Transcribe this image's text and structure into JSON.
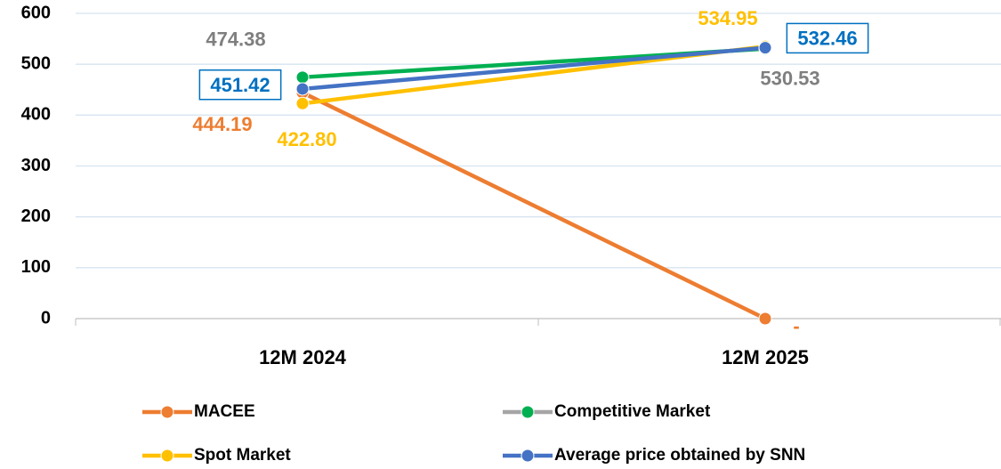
{
  "chart_data": {
    "type": "line",
    "categories": [
      "12M 2024",
      "12M 2025"
    ],
    "series": [
      {
        "name": "MACEE",
        "color": "#ED7D31",
        "label_color": "#ED7D31",
        "values": [
          444.19,
          0
        ],
        "value_labels": [
          "444.19",
          "-"
        ]
      },
      {
        "name": "Competitive Market",
        "color": "#00B050",
        "label_color": "#7F7F7F",
        "values": [
          474.38,
          530.53
        ]
      },
      {
        "name": "Spot Market",
        "color": "#FFC000",
        "label_color": "#FFC000",
        "values": [
          422.8,
          534.95
        ],
        "value_labels": [
          "422.80",
          "534.95"
        ]
      },
      {
        "name": "Average price obtained by SNN",
        "color": "#4472C4",
        "label_color": "#0070C0",
        "values": [
          451.42,
          532.46
        ],
        "boxed_labels": true
      }
    ],
    "ylim": [
      0,
      600
    ],
    "yticks": [
      0,
      100,
      200,
      300,
      400,
      500,
      600
    ],
    "grid": true
  }
}
